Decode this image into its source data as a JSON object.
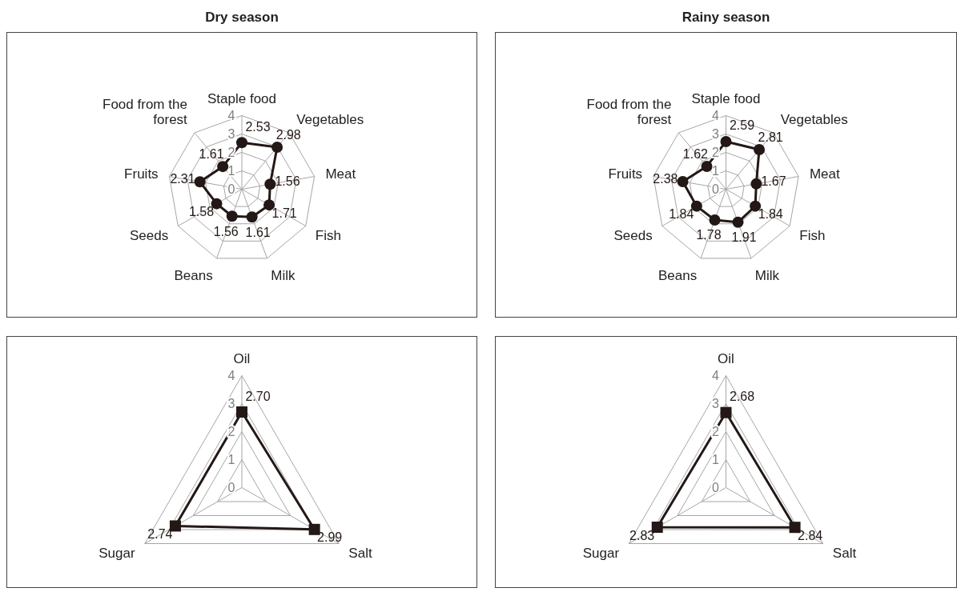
{
  "chart_data": [
    {
      "type": "radar",
      "title": "Dry season",
      "categories": [
        "Staple food",
        "Vegetables",
        "Meat",
        "Fish",
        "Milk",
        "Beans",
        "Seeds",
        "Fruits",
        "Food from the forest"
      ],
      "series": [
        {
          "color": "#231815",
          "values": [
            2.53,
            2.98,
            1.56,
            1.71,
            1.61,
            1.56,
            1.58,
            2.31,
            1.61
          ],
          "value_labels": [
            "2.53",
            "2.98",
            "1.56",
            "1.71",
            "1.61",
            "1.56",
            "1.58",
            "2.31",
            "1.61"
          ]
        }
      ],
      "ylim": [
        0,
        4
      ],
      "yticks": [
        0,
        1,
        2,
        3,
        4
      ],
      "grid": true,
      "marker": "circle"
    },
    {
      "type": "radar",
      "title": "Rainy season",
      "categories": [
        "Staple food",
        "Vegetables",
        "Meat",
        "Fish",
        "Milk",
        "Beans",
        "Seeds",
        "Fruits",
        "Food from the forest"
      ],
      "series": [
        {
          "color": "#231815",
          "values": [
            2.59,
            2.81,
            1.67,
            1.84,
            1.91,
            1.78,
            1.84,
            2.38,
            1.62
          ],
          "value_labels": [
            "2.59",
            "2.81",
            "1.67",
            "1.84",
            "1.91",
            "1.78",
            "1.84",
            "2.38",
            "1.62"
          ]
        }
      ],
      "ylim": [
        0,
        4
      ],
      "yticks": [
        0,
        1,
        2,
        3,
        4
      ],
      "grid": true,
      "marker": "circle"
    },
    {
      "type": "radar",
      "categories": [
        "Oil",
        "Salt",
        "Sugar"
      ],
      "series": [
        {
          "color": "#231815",
          "values": [
            2.7,
            2.99,
            2.74
          ],
          "value_labels": [
            "2.70",
            "2.99",
            "2.74"
          ]
        }
      ],
      "ylim": [
        0,
        4
      ],
      "yticks": [
        0,
        1,
        2,
        3,
        4
      ],
      "grid": true,
      "marker": "square"
    },
    {
      "type": "radar",
      "categories": [
        "Oil",
        "Salt",
        "Sugar"
      ],
      "series": [
        {
          "color": "#231815",
          "values": [
            2.68,
            2.84,
            2.83
          ],
          "value_labels": [
            "2.68",
            "2.84",
            "2.83"
          ]
        }
      ],
      "ylim": [
        0,
        4
      ],
      "yticks": [
        0,
        1,
        2,
        3,
        4
      ],
      "grid": true,
      "marker": "square"
    }
  ]
}
